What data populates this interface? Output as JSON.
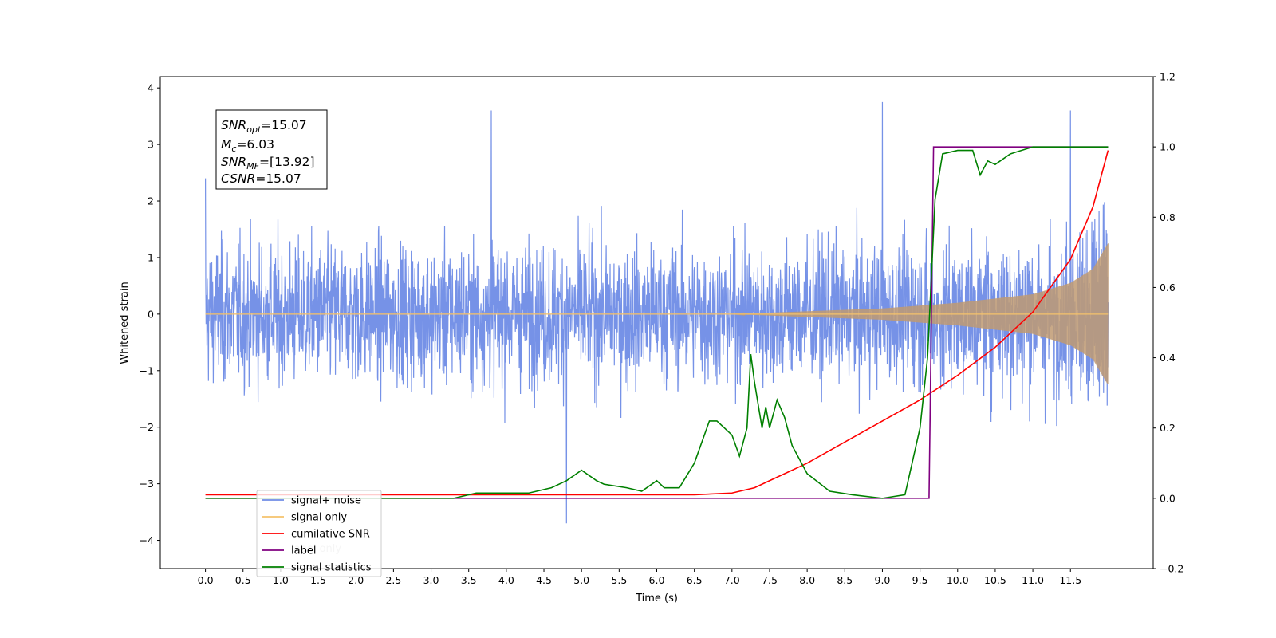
{
  "chart_data": {
    "type": "line",
    "xlabel": "Time (s)",
    "ylabel_left": "Whitened strain",
    "ylabel_right": "",
    "xlim": [
      -0.6,
      12.6
    ],
    "ylim_left": [
      -4.5,
      4.2
    ],
    "ylim_right": [
      -0.2,
      1.2
    ],
    "x_ticks": [
      0.0,
      0.5,
      1.0,
      1.5,
      2.0,
      2.5,
      3.0,
      3.5,
      4.0,
      4.5,
      5.0,
      5.5,
      6.0,
      6.5,
      7.0,
      7.5,
      8.0,
      8.5,
      9.0,
      9.5,
      10.0,
      10.5,
      11.0,
      11.5
    ],
    "x_tick_labels": [
      "0.0",
      "0.5",
      "1.0",
      "1.5",
      "2.0",
      "2.5",
      "3.0",
      "3.5",
      "4.0",
      "4.5",
      "5.0",
      "5.5",
      "6.0",
      "6.5",
      "7.0",
      "7.5",
      "8.0",
      "8.5",
      "9.0",
      "9.5",
      "10.0",
      "10.5",
      "11.0",
      "11.5"
    ],
    "y_ticks_left": [
      -4,
      -3,
      -2,
      -1,
      0,
      1,
      2,
      3,
      4
    ],
    "y_tick_labels_left": [
      "−4",
      "−3",
      "−2",
      "−1",
      "0",
      "1",
      "2",
      "3",
      "4"
    ],
    "y_ticks_right": [
      -0.2,
      0.0,
      0.2,
      0.4,
      0.6,
      0.8,
      1.0,
      1.2
    ],
    "y_tick_labels_right": [
      "−0.2",
      "0.0",
      "0.2",
      "0.4",
      "0.6",
      "0.8",
      "1.0",
      "1.2"
    ],
    "grid": false,
    "legend_position": "lower-left",
    "annotation": {
      "snr_opt": "=15.07",
      "mc": "=6.03",
      "snr_mf": "=[13.92]",
      "csnr": "=15.07"
    },
    "series": [
      {
        "name": "signal+ noise",
        "axis": "left",
        "color": "#6f8ce6",
        "style": "noisy-band",
        "x_range": [
          0.0,
          12.0
        ],
        "typical_amplitude": 1.1,
        "notable_peaks": [
          [
            0.0,
            2.4
          ],
          [
            3.8,
            3.6
          ],
          [
            4.8,
            -3.7
          ],
          [
            9.0,
            3.75
          ],
          [
            11.5,
            3.6
          ]
        ]
      },
      {
        "name": "signal only",
        "axis": "left",
        "color": "#f5c26b",
        "style": "chirp",
        "x_range": [
          0.0,
          12.0
        ],
        "envelope": [
          [
            0.0,
            0.0
          ],
          [
            7.0,
            0.0
          ],
          [
            8.0,
            0.05
          ],
          [
            9.0,
            0.1
          ],
          [
            10.0,
            0.2
          ],
          [
            11.0,
            0.35
          ],
          [
            11.5,
            0.55
          ],
          [
            11.8,
            0.8
          ],
          [
            12.0,
            1.25
          ]
        ]
      },
      {
        "name": "cumilative SNR",
        "axis": "right",
        "color": "#ff0000",
        "x": [
          0.0,
          6.5,
          7.0,
          7.3,
          7.6,
          8.0,
          8.5,
          9.0,
          9.5,
          10.0,
          10.5,
          11.0,
          11.5,
          11.8,
          12.0
        ],
        "y": [
          0.01,
          0.01,
          0.015,
          0.03,
          0.06,
          0.1,
          0.16,
          0.22,
          0.28,
          0.35,
          0.43,
          0.53,
          0.68,
          0.83,
          0.99
        ]
      },
      {
        "name": "label",
        "axis": "right",
        "color": "#800080",
        "x": [
          0.0,
          9.62,
          9.68,
          12.0
        ],
        "y": [
          0.0,
          0.0,
          1.0,
          1.0
        ]
      },
      {
        "name": "signal statistics",
        "axis": "right",
        "color": "#008000",
        "x": [
          0.0,
          3.3,
          3.6,
          4.0,
          4.3,
          4.6,
          4.8,
          5.0,
          5.2,
          5.3,
          5.6,
          5.8,
          6.0,
          6.1,
          6.3,
          6.5,
          6.7,
          6.8,
          6.9,
          7.0,
          7.1,
          7.2,
          7.25,
          7.3,
          7.4,
          7.45,
          7.5,
          7.6,
          7.7,
          7.8,
          8.0,
          8.3,
          8.6,
          9.0,
          9.3,
          9.5,
          9.6,
          9.7,
          9.8,
          10.0,
          10.2,
          10.3,
          10.4,
          10.5,
          10.7,
          11.0,
          12.0
        ],
        "y": [
          0.0,
          0.0,
          0.015,
          0.015,
          0.015,
          0.03,
          0.05,
          0.08,
          0.05,
          0.04,
          0.03,
          0.02,
          0.05,
          0.03,
          0.03,
          0.1,
          0.22,
          0.22,
          0.2,
          0.18,
          0.12,
          0.2,
          0.41,
          0.33,
          0.2,
          0.26,
          0.2,
          0.28,
          0.23,
          0.15,
          0.07,
          0.02,
          0.01,
          0.0,
          0.01,
          0.2,
          0.4,
          0.85,
          0.98,
          0.99,
          0.99,
          0.92,
          0.96,
          0.95,
          0.98,
          1.0,
          1.0
        ]
      }
    ]
  }
}
